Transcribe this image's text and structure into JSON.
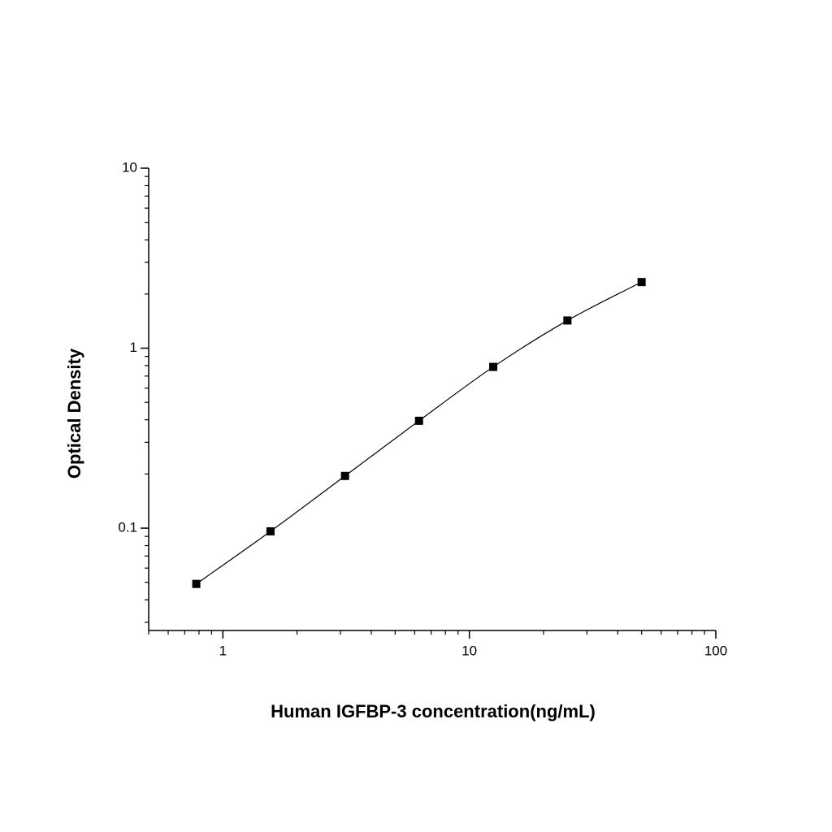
{
  "chart_data": {
    "type": "scatter",
    "log_x": true,
    "log_y": true,
    "fit_curve": true,
    "x_label": "Human IGFBP-3 concentration(ng/mL)",
    "y_label": "Optical Density",
    "x": [
      0.78,
      1.56,
      3.13,
      6.25,
      12.5,
      25,
      50
    ],
    "values": [
      0.049,
      0.096,
      0.195,
      0.395,
      0.787,
      1.425,
      2.33
    ],
    "color": "#000000",
    "xlim": [
      0.5,
      100
    ],
    "ylim": [
      0.027,
      10
    ],
    "xticks": [
      1,
      10,
      100
    ],
    "yticks": [
      0.1,
      1,
      10
    ]
  }
}
